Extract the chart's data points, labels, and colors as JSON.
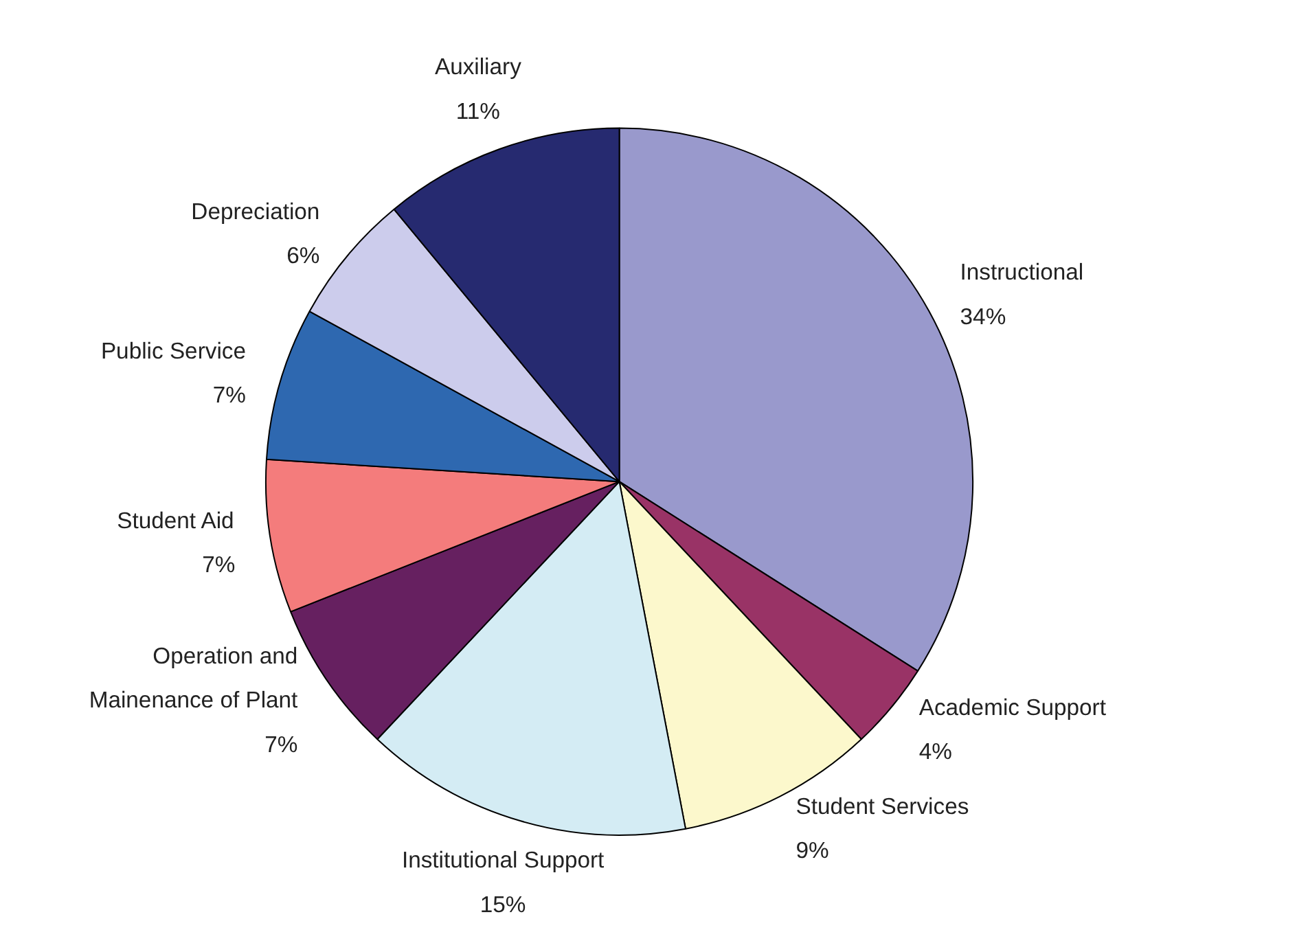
{
  "chart_data": {
    "type": "pie",
    "categories": [
      "Instructional",
      "Academic Support",
      "Student Services",
      "Institutional Support",
      "Operation and\nMainenance of Plant",
      "Student Aid",
      "Public Service",
      "Depreciation",
      "Auxiliary"
    ],
    "values": [
      34,
      4,
      9,
      15,
      7,
      7,
      7,
      6,
      11
    ],
    "value_labels": [
      "34%",
      "4%",
      "9%",
      "15%",
      "7%",
      "7%",
      "7%",
      "6%",
      "11%"
    ],
    "colors": [
      "#9999cc",
      "#993366",
      "#fcf8cc",
      "#d4ecf4",
      "#662060",
      "#f47c7c",
      "#2e68b0",
      "#ccccec",
      "#262a70"
    ]
  }
}
